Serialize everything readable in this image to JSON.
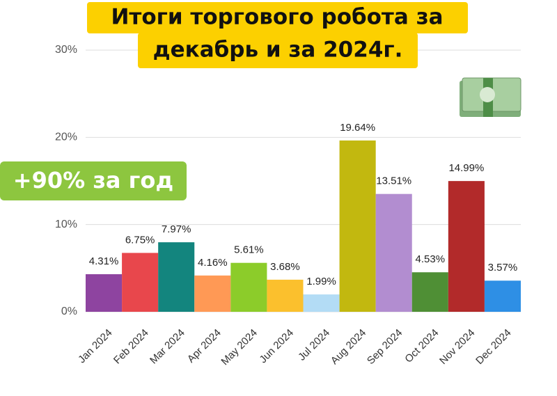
{
  "chart_data": {
    "type": "bar",
    "title": [
      "Итоги торгового робота за",
      "декабрь и за 2024г."
    ],
    "annotation": "+90% за год",
    "categories": [
      "Jan 2024",
      "Feb 2024",
      "Mar 2024",
      "Apr 2024",
      "May 2024",
      "Jun 2024",
      "Jul 2024",
      "Aug 2024",
      "Sep 2024",
      "Oct 2024",
      "Nov 2024",
      "Dec 2024"
    ],
    "values": [
      4.31,
      6.75,
      7.97,
      4.16,
      5.61,
      3.68,
      1.99,
      19.64,
      13.51,
      4.53,
      14.99,
      3.57
    ],
    "value_labels": [
      "4.31%",
      "6.75%",
      "7.97%",
      "4.16%",
      "5.61%",
      "3.68%",
      "1.99%",
      "19.64%",
      "13.51%",
      "4.53%",
      "14.99%",
      "3.57%"
    ],
    "colors": [
      "#8e44a0",
      "#e8474c",
      "#13857e",
      "#ff9955",
      "#8ccc2a",
      "#fbc02d",
      "#b3dcf5",
      "#c2b80f",
      "#b28dd0",
      "#4f8f35",
      "#b22a2a",
      "#2e8fe5"
    ],
    "ylim": [
      0,
      30
    ],
    "yticks": [
      {
        "value": 0,
        "label": "0%"
      },
      {
        "value": 10,
        "label": "10%"
      },
      {
        "value": 20,
        "label": "20%"
      },
      {
        "value": 30,
        "label": "30%"
      }
    ],
    "grid": true
  }
}
